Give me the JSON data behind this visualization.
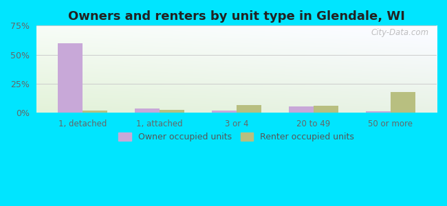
{
  "title": "Owners and renters by unit type in Glendale, WI",
  "categories": [
    "1, detached",
    "1, attached",
    "3 or 4",
    "20 to 49",
    "50 or more"
  ],
  "owner_values": [
    60.0,
    3.5,
    2.0,
    5.5,
    1.5
  ],
  "renter_values": [
    2.0,
    2.5,
    6.5,
    6.0,
    18.0
  ],
  "owner_color": "#c8a8d8",
  "renter_color": "#b8bf80",
  "ylim": [
    0,
    75
  ],
  "yticks": [
    0,
    25,
    50,
    75
  ],
  "ytick_labels": [
    "0%",
    "25%",
    "50%",
    "75%"
  ],
  "background_color": "#00e5ff",
  "title_fontsize": 13,
  "legend_labels": [
    "Owner occupied units",
    "Renter occupied units"
  ],
  "bar_width": 0.32,
  "watermark": "City-Data.com"
}
